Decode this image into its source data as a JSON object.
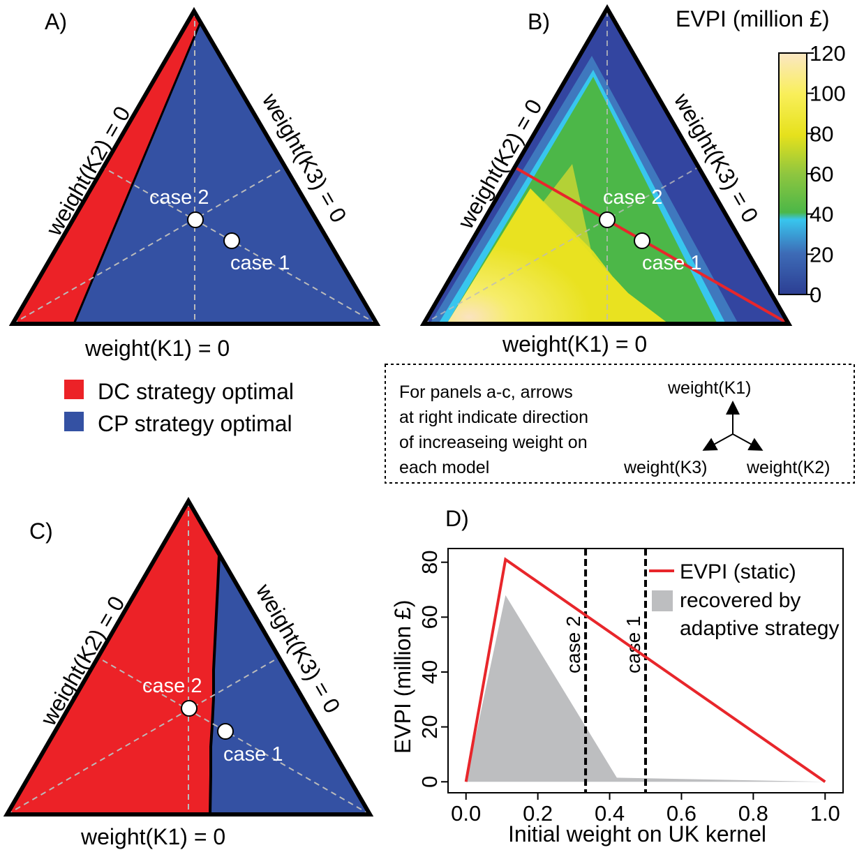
{
  "colors": {
    "dc_red": "#ec2227",
    "cp_blue": "#3451a3",
    "evpi_line": "#e8262b",
    "recovered_gray": "#bdbec0",
    "guide_dash": "#bbbbbb",
    "case_marker": "#ffffff"
  },
  "panel_a": {
    "label": "A)",
    "edge_bottom": "weight(K1) = 0",
    "edge_left": "weight(K2) = 0",
    "edge_right": "weight(K3) = 0",
    "case1": "case 1",
    "case2": "case 2"
  },
  "panel_b": {
    "label": "B)",
    "edge_bottom": "weight(K1) = 0",
    "edge_left": "weight(K2) = 0",
    "edge_right": "weight(K3) = 0",
    "case1": "case 1",
    "case2": "case 2",
    "colorbar": {
      "title": "EVPI (million £)",
      "ticks": [
        "0",
        "20",
        "40",
        "60",
        "80",
        "100",
        "120"
      ],
      "stops": [
        "#2c3e93",
        "#3d6bb6",
        "#38c6ee",
        "#4cb748",
        "#8fc63f",
        "#e6e11c",
        "#f9ef5a",
        "#fbe7c4"
      ]
    }
  },
  "panel_c": {
    "label": "C)",
    "edge_bottom": "weight(K1) = 0",
    "edge_left": "weight(K2) = 0",
    "edge_right": "weight(K3) = 0",
    "case1": "case 1",
    "case2": "case 2"
  },
  "legend": {
    "dc": "DC strategy optimal",
    "cp": "CP strategy optimal"
  },
  "note_box": {
    "lines": [
      "For panels a-c, arrows",
      "at right indicate direction",
      "of increaseing weight on",
      "each model"
    ],
    "arrow_up": "weight(K1)",
    "arrow_left": "weight(K3)",
    "arrow_right": "weight(K2)"
  },
  "panel_d": {
    "label": "D)"
  },
  "chart_data": {
    "type": "line",
    "xlabel": "Initial weight on UK kernel",
    "ylabel": "EVPI (million £)",
    "xlim": [
      -0.05,
      1.05
    ],
    "ylim": [
      -4,
      85
    ],
    "xticks": [
      0.0,
      0.2,
      0.4,
      0.6,
      0.8,
      1.0
    ],
    "xtick_labels": [
      "0.0",
      "0.2",
      "0.4",
      "0.6",
      "0.8",
      "1.0"
    ],
    "yticks": [
      0,
      20,
      40,
      60,
      80
    ],
    "ytick_labels": [
      "0",
      "20",
      "40",
      "60",
      "80"
    ],
    "legend_position": "top-right",
    "series": [
      {
        "name": "EVPI (static)",
        "kind": "line",
        "x": [
          0.0,
          0.11,
          1.0
        ],
        "y": [
          0.0,
          81,
          0.0
        ]
      },
      {
        "name": "recovered by adaptive strategy",
        "kind": "area",
        "x": [
          0.0,
          0.11,
          0.42,
          1.0
        ],
        "y": [
          0.0,
          68,
          1.5,
          0.0
        ]
      }
    ],
    "vlines": [
      {
        "x": 0.333,
        "label": "case 2"
      },
      {
        "x": 0.5,
        "label": "case 1"
      }
    ]
  }
}
